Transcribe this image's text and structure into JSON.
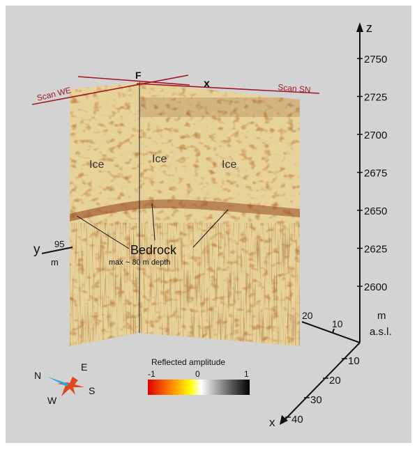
{
  "colors": {
    "background": "#d3d3d3",
    "ice_base": "#e7d29a",
    "ice_speckle": "#a2551c",
    "bedrock_band": "#8e3b17",
    "scan_line": "#a01828",
    "axis": "#111111"
  },
  "axes": {
    "z": {
      "label": "z",
      "ticks": [
        "2750",
        "2725",
        "2700",
        "2675",
        "2650",
        "2625",
        "2600"
      ],
      "unit_line1": "m",
      "unit_line2": "a.s.l."
    },
    "x": {
      "label": "x",
      "ticks": [
        "10",
        "20",
        "30",
        "40"
      ]
    },
    "y": {
      "label": "y",
      "ticks": [
        "20",
        "10"
      ],
      "end_value": "95",
      "end_unit": "m"
    }
  },
  "scans": {
    "we_label": "Scan WE",
    "sn_label": "Scan SN",
    "corner_label": "F",
    "x_marker": "x"
  },
  "annotations": {
    "ice_labels": [
      "Ice",
      "Ice",
      "Ice"
    ],
    "bedrock_label": "Bedrock",
    "bedrock_note": "max ~ 80 m depth"
  },
  "colorbar": {
    "title": "Reflected amplitude",
    "tick_min": "-1",
    "tick_mid": "0",
    "tick_max": "1",
    "stops": [
      "#e00000",
      "#ff8000",
      "#ffff00",
      "#ffffff",
      "#7a7a7a",
      "#000000"
    ]
  },
  "compass": {
    "n": "N",
    "e": "E",
    "s": "S",
    "w": "W",
    "north_arrow_color": "#2aa6e0",
    "star_color": "#e0471c"
  }
}
